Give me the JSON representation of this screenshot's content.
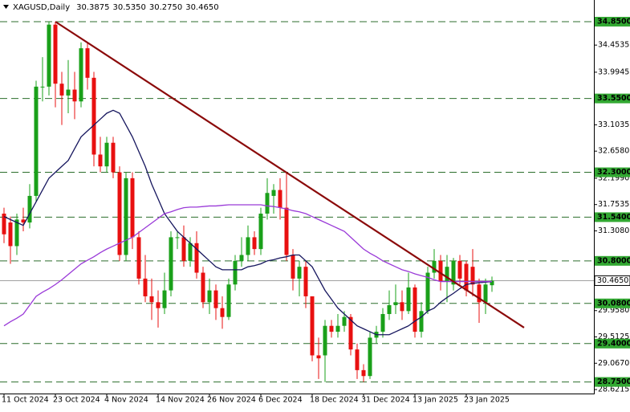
{
  "chart_data": {
    "type": "candlestick",
    "title": "XAGUSD,Daily",
    "header": {
      "ohlc": [
        30.3875,
        30.535,
        30.275,
        30.465
      ],
      "ohlc_labels": [
        "30.3875",
        "30.5350",
        "30.2750",
        "30.4650"
      ]
    },
    "categories": [
      "11 Oct 2024",
      null,
      null,
      null,
      null,
      null,
      null,
      null,
      "23 Oct 2024",
      null,
      null,
      null,
      null,
      null,
      null,
      null,
      "4 Nov 2024",
      null,
      null,
      null,
      null,
      null,
      null,
      null,
      "14 Nov 2024",
      null,
      null,
      null,
      null,
      null,
      null,
      null,
      "26 Nov 2024",
      null,
      null,
      null,
      null,
      null,
      null,
      null,
      "6 Dec 2024",
      null,
      null,
      null,
      null,
      null,
      null,
      null,
      "18 Dec 2024",
      null,
      null,
      null,
      null,
      null,
      null,
      null,
      "31 Dec 2024",
      null,
      null,
      null,
      null,
      null,
      null,
      null,
      "13 Jan 2025",
      null,
      null,
      null,
      null,
      null,
      null,
      null,
      "23 Jan 2025",
      null,
      null,
      null,
      null
    ],
    "open": [
      31.6,
      31.45,
      31.05,
      31.5,
      31.45,
      31.9,
      33.75,
      33.75,
      34.8,
      33.8,
      33.6,
      33.7,
      33.5,
      34.4,
      33.9,
      32.6,
      32.4,
      32.8,
      32.3,
      30.9,
      32.2,
      31.2,
      30.5,
      30.2,
      30.1,
      30.0,
      30.3,
      31.2,
      31.2,
      30.8,
      31.1,
      30.6,
      30.1,
      30.3,
      30.0,
      29.85,
      30.4,
      30.8,
      30.9,
      31.2,
      31.0,
      31.6,
      31.9,
      32.0,
      31.7,
      30.9,
      30.5,
      30.7,
      30.2,
      29.2,
      29.2,
      29.7,
      29.6,
      29.7,
      29.85,
      29.3,
      28.95,
      28.85,
      29.5,
      29.6,
      29.9,
      30.05,
      30.1,
      29.95,
      30.35,
      29.6,
      29.95,
      30.6,
      30.8,
      30.45,
      30.4,
      30.8,
      30.75,
      30.7,
      30.4,
      30.1,
      30.3875
    ],
    "high": [
      31.7,
      31.55,
      31.6,
      31.7,
      32.1,
      33.85,
      34.25,
      34.85,
      34.85,
      34.0,
      34.2,
      34.0,
      34.5,
      34.5,
      34.0,
      32.9,
      32.9,
      32.9,
      32.4,
      32.3,
      32.3,
      31.3,
      30.9,
      30.5,
      30.3,
      30.6,
      31.3,
      31.3,
      31.4,
      31.2,
      31.3,
      30.7,
      30.5,
      30.4,
      30.2,
      30.5,
      30.9,
      31.2,
      31.4,
      31.3,
      31.7,
      32.2,
      32.1,
      32.2,
      32.3,
      31.0,
      30.8,
      30.8,
      30.2,
      29.5,
      29.8,
      29.8,
      29.9,
      29.95,
      29.9,
      29.4,
      29.05,
      29.6,
      29.7,
      30.0,
      30.3,
      30.4,
      30.3,
      30.6,
      30.4,
      30.1,
      30.7,
      31.0,
      30.9,
      30.9,
      30.85,
      30.9,
      30.8,
      31.0,
      30.5,
      30.5,
      30.535
    ],
    "low": [
      31.1,
      30.75,
      30.9,
      31.3,
      31.35,
      31.8,
      33.5,
      33.6,
      33.4,
      33.1,
      33.3,
      33.2,
      33.4,
      33.7,
      32.4,
      32.3,
      32.3,
      32.2,
      30.8,
      30.8,
      31.0,
      30.4,
      30.1,
      29.8,
      29.67,
      29.9,
      30.2,
      31.0,
      30.7,
      30.7,
      30.5,
      30.0,
      29.9,
      29.8,
      29.65,
      29.8,
      30.3,
      30.7,
      30.8,
      30.9,
      30.9,
      31.5,
      31.6,
      31.5,
      30.8,
      30.3,
      30.2,
      30.0,
      29.1,
      28.8,
      28.75,
      29.5,
      29.5,
      29.6,
      29.2,
      28.8,
      28.75,
      28.8,
      29.4,
      29.5,
      29.8,
      29.9,
      29.8,
      29.9,
      29.5,
      29.5,
      29.9,
      30.5,
      30.3,
      30.1,
      30.3,
      30.4,
      30.2,
      30.2,
      29.75,
      29.9,
      30.275
    ],
    "close": [
      31.25,
      31.05,
      31.5,
      31.45,
      31.9,
      33.75,
      33.75,
      34.8,
      33.8,
      33.6,
      33.7,
      33.5,
      34.4,
      33.9,
      32.6,
      32.4,
      32.8,
      32.3,
      30.9,
      32.2,
      31.2,
      30.5,
      30.2,
      30.1,
      30.0,
      30.3,
      31.2,
      31.2,
      30.8,
      31.1,
      30.6,
      30.1,
      30.3,
      30.0,
      29.85,
      30.4,
      30.8,
      30.9,
      31.2,
      31.0,
      31.6,
      31.95,
      32.0,
      31.7,
      30.9,
      30.5,
      30.7,
      30.2,
      29.2,
      29.15,
      29.7,
      29.6,
      29.7,
      29.85,
      29.3,
      28.95,
      28.85,
      29.5,
      29.6,
      29.9,
      30.05,
      30.1,
      29.95,
      30.35,
      29.6,
      29.95,
      30.6,
      30.8,
      30.45,
      30.7,
      30.8,
      30.5,
      30.3,
      30.4,
      30.1,
      30.4,
      30.465
    ],
    "up_color": "#1aa01a",
    "down_color": "#e81010",
    "moving_averages": [
      {
        "color": "#16165e",
        "values": [
          31.55,
          31.5,
          31.45,
          31.4,
          31.6,
          31.8,
          32.0,
          32.2,
          32.3,
          32.4,
          32.5,
          32.7,
          32.9,
          33.0,
          33.1,
          33.2,
          33.3,
          33.35,
          33.3,
          33.1,
          32.9,
          32.65,
          32.4,
          32.1,
          31.85,
          31.6,
          31.45,
          31.3,
          31.2,
          31.1,
          31.0,
          30.9,
          30.8,
          30.7,
          30.65,
          30.65,
          30.65,
          30.65,
          30.7,
          30.72,
          30.75,
          30.8,
          30.82,
          30.85,
          30.87,
          30.9,
          30.9,
          30.8,
          30.7,
          30.5,
          30.3,
          30.15,
          30.0,
          29.9,
          29.8,
          29.7,
          29.65,
          29.6,
          29.55,
          29.55,
          29.55,
          29.6,
          29.65,
          29.7,
          29.78,
          29.85,
          29.95,
          30.0,
          30.1,
          30.18,
          30.25,
          30.33,
          30.4,
          30.42,
          30.43,
          30.44,
          30.45
        ]
      },
      {
        "color": "#9a3ad8",
        "values": [
          29.7,
          29.77,
          29.83,
          29.9,
          30.05,
          30.2,
          30.27,
          30.33,
          30.4,
          30.48,
          30.57,
          30.66,
          30.75,
          30.81,
          30.87,
          30.94,
          31.0,
          31.05,
          31.1,
          31.15,
          31.2,
          31.28,
          31.36,
          31.44,
          31.52,
          31.6,
          31.63,
          31.67,
          31.7,
          31.71,
          31.71,
          31.72,
          31.73,
          31.73,
          31.74,
          31.75,
          31.75,
          31.75,
          31.75,
          31.75,
          31.75,
          31.73,
          31.72,
          31.7,
          31.68,
          31.65,
          31.63,
          31.6,
          31.55,
          31.5,
          31.45,
          31.4,
          31.35,
          31.3,
          31.2,
          31.1,
          31.0,
          30.93,
          30.87,
          30.8,
          30.75,
          30.7,
          30.65,
          30.62,
          30.58,
          30.55,
          30.52,
          30.48,
          30.45,
          30.45,
          30.45,
          30.45,
          30.45,
          30.45,
          30.45,
          30.45,
          30.45
        ]
      }
    ],
    "trendline": {
      "color": "#8b0a0a",
      "x": [
        8,
        81
      ],
      "y": [
        34.85,
        29.67
      ]
    },
    "levels": [
      {
        "value": 34.85,
        "label": "34.8500"
      },
      {
        "value": 33.55,
        "label": "33.5500"
      },
      {
        "value": 32.3,
        "label": "32.3000"
      },
      {
        "value": 31.54,
        "label": "31.5400"
      },
      {
        "value": 30.8,
        "label": "30.8000"
      },
      {
        "value": 30.08,
        "label": "30.0800"
      },
      {
        "value": 29.4,
        "label": "29.4000"
      },
      {
        "value": 28.75,
        "label": "28.7500"
      }
    ],
    "level_color": "#2c6e2c",
    "last_price": {
      "value": 30.465,
      "label": "30.4650"
    },
    "ylim": [
      28.554,
      35.217
    ],
    "yticks": [
      34.4535,
      33.9945,
      33.1035,
      {
        "value": 32.658,
        "label": "32.6580"
      },
      {
        "value": 32.199,
        "label": "32.1990"
      },
      31.7535,
      {
        "value": 31.308,
        "label": "31.3080"
      },
      {
        "value": 29.958,
        "label": "29.9580"
      },
      29.5125,
      {
        "value": 29.067,
        "label": "29.0670"
      },
      28.6215
    ]
  }
}
